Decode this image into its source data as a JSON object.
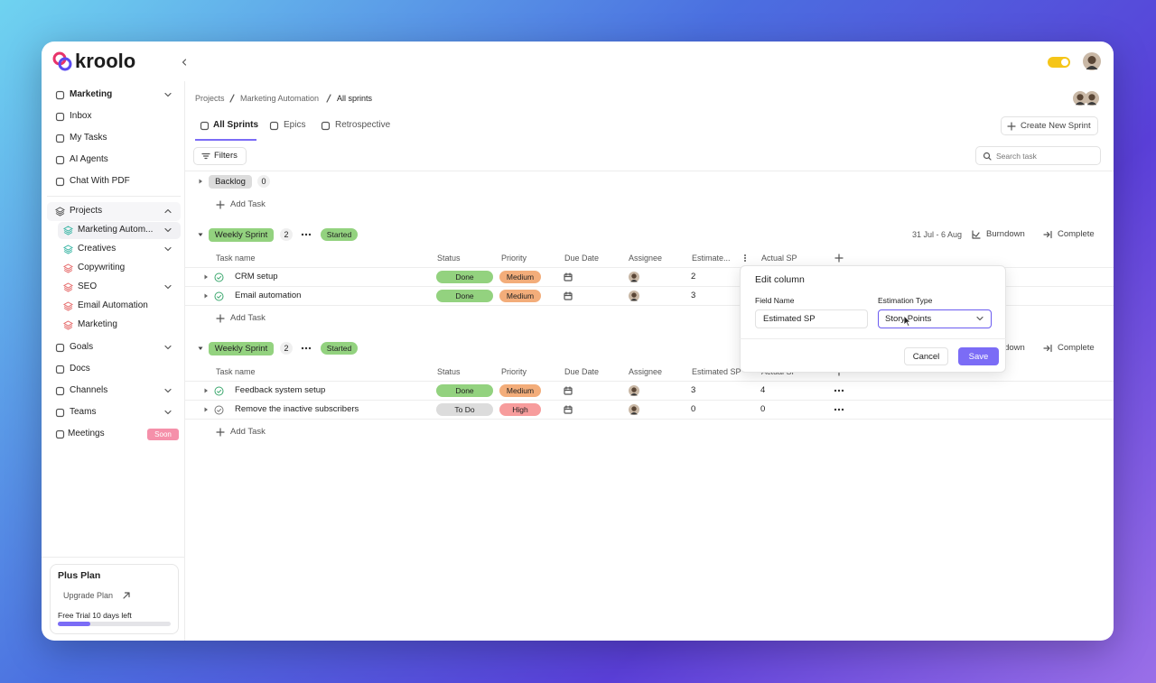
{
  "brand": "kroolo",
  "sidebar": {
    "nav": [
      "Marketing",
      "Inbox",
      "My Tasks",
      "AI Agents",
      "Chat With PDF"
    ],
    "projects": {
      "label": "Projects",
      "items": [
        "Marketing Autom...",
        "Creatives",
        "Copywriting",
        "SEO",
        "Email Automation",
        "Marketing"
      ]
    },
    "more": [
      "Goals",
      "Docs",
      "Channels",
      "Teams",
      "Meetings"
    ],
    "badge": "Soon",
    "plan": {
      "title": "Plus Plan",
      "upgrade": "Upgrade Plan",
      "trial": "Free Trial 10 days left"
    }
  },
  "breadcrumb": [
    "Projects",
    "Marketing Automation",
    "All sprints"
  ],
  "tabs": [
    "All Sprints",
    "Epics",
    "Retrospective"
  ],
  "create_button": "Create New Sprint",
  "filters": "Filters",
  "search_placeholder": "Search task",
  "backlog": {
    "name": "Backlog",
    "count": 0,
    "add": "Add Task"
  },
  "sprints": [
    {
      "name": "Weekly Sprint",
      "count": 2,
      "state": "Started",
      "dates": "31 Jul - 6 Aug",
      "burndown": "Burndown",
      "complete": "Complete",
      "columns": [
        "Task name",
        "Status",
        "Priority",
        "Due Date",
        "Assignee",
        "Estimate...",
        "Actual SP"
      ],
      "rows": [
        {
          "task": "CRM setup",
          "status": "Done",
          "priority": "Medium",
          "estimated": 2
        },
        {
          "task": "Email automation",
          "status": "Done",
          "priority": "Medium",
          "estimated": 3
        }
      ],
      "add": "Add Task"
    },
    {
      "name": "Weekly Sprint",
      "count": 2,
      "state": "Started",
      "burndown": "Burndown",
      "complete": "Complete",
      "columns": [
        "Task name",
        "Status",
        "Priority",
        "Due Date",
        "Assignee",
        "Estimated SP",
        "Actual SP"
      ],
      "rows": [
        {
          "task": "Feedback system setup",
          "status": "Done",
          "priority": "Medium",
          "estimated": 3,
          "actual": 4
        },
        {
          "task": "Remove the inactive subscribers",
          "status": "To Do",
          "priority": "High",
          "estimated": 0,
          "actual": 0
        }
      ],
      "add": "Add Task"
    }
  ],
  "dialog": {
    "title": "Edit column",
    "field_label": "Field Name",
    "field_value": "Estimated SP",
    "type_label": "Estimation Type",
    "type_value": "Story Points",
    "cancel": "Cancel",
    "save": "Save"
  }
}
